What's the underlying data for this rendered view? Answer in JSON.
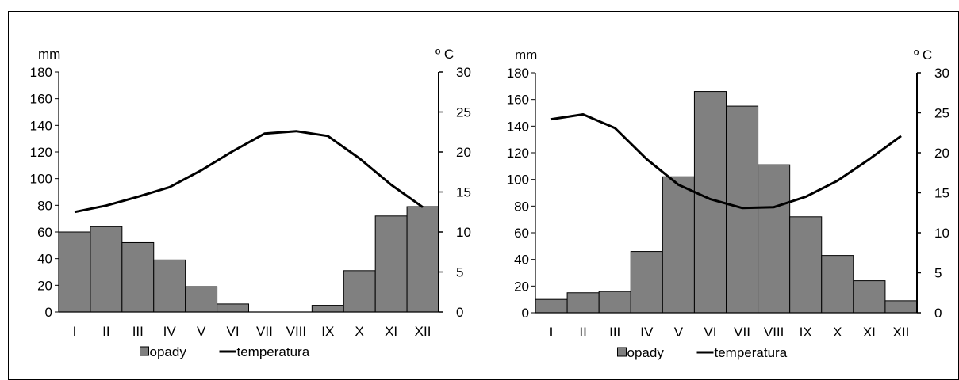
{
  "chart_data": [
    {
      "type": "bar",
      "categories": [
        "I",
        "II",
        "III",
        "IV",
        "V",
        "VI",
        "VII",
        "VIII",
        "IX",
        "X",
        "XI",
        "XII"
      ],
      "series": [
        {
          "name": "opady",
          "type": "bar",
          "axis": "left",
          "values": [
            60,
            64,
            52,
            39,
            19,
            6,
            0,
            0,
            5,
            31,
            72,
            79
          ]
        },
        {
          "name": "temperatura",
          "type": "line",
          "axis": "right",
          "values": [
            12.5,
            13.3,
            14.4,
            15.6,
            17.7,
            20.1,
            22.3,
            22.6,
            22.0,
            19.2,
            15.9,
            13.1
          ]
        }
      ],
      "ylabel_left": "mm",
      "ylabel_right": "º C",
      "ylim_left": [
        0,
        180
      ],
      "ylim_right": [
        0,
        30
      ],
      "yticks_left": [
        0,
        20,
        40,
        60,
        80,
        100,
        120,
        140,
        160,
        180
      ],
      "yticks_right": [
        0,
        5,
        10,
        15,
        20,
        25,
        30
      ],
      "grid": false,
      "legend_position": "bottom",
      "colors": {
        "bar": "#808080",
        "bar_edge": "#000000",
        "line": "#000000"
      }
    },
    {
      "type": "bar",
      "categories": [
        "I",
        "II",
        "III",
        "IV",
        "V",
        "VI",
        "VII",
        "VIII",
        "IX",
        "X",
        "XI",
        "XII"
      ],
      "series": [
        {
          "name": "opady",
          "type": "bar",
          "axis": "left",
          "values": [
            10,
            15,
            16,
            46,
            102,
            166,
            155,
            111,
            72,
            43,
            24,
            9
          ]
        },
        {
          "name": "temperatura",
          "type": "line",
          "axis": "right",
          "values": [
            24.2,
            24.8,
            23.1,
            19.2,
            16.0,
            14.2,
            13.1,
            13.2,
            14.5,
            16.5,
            19.2,
            22.1
          ]
        }
      ],
      "ylabel_left": "mm",
      "ylabel_right": "º C",
      "ylim_left": [
        0,
        180
      ],
      "ylim_right": [
        0,
        30
      ],
      "yticks_left": [
        0,
        20,
        40,
        60,
        80,
        100,
        120,
        140,
        160,
        180
      ],
      "yticks_right": [
        0,
        5,
        10,
        15,
        20,
        25,
        30
      ],
      "grid": false,
      "legend_position": "bottom",
      "colors": {
        "bar": "#808080",
        "bar_edge": "#000000",
        "line": "#000000"
      }
    }
  ]
}
